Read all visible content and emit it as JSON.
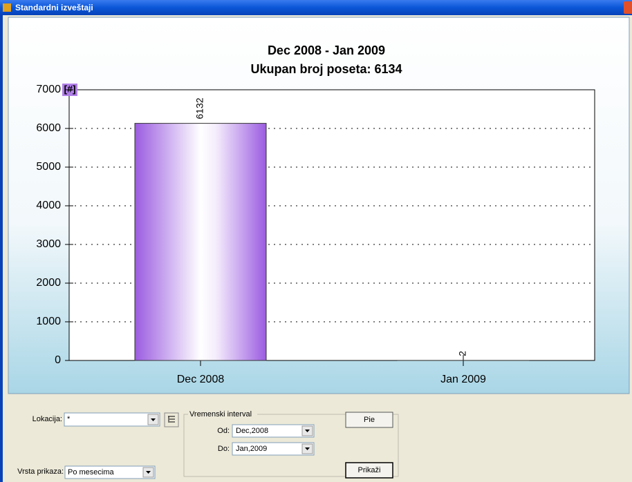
{
  "window": {
    "title": "Standardni izveštaji"
  },
  "chart_data": {
    "type": "bar",
    "title": "Dec 2008 - Jan 2009",
    "subtitle": "Ukupan broj poseta: 6134",
    "y_unit": "[#]",
    "categories": [
      "Dec 2008",
      "Jan 2009"
    ],
    "values": [
      6132,
      2
    ],
    "color": "#9b5ce0",
    "ylim": [
      0,
      7000
    ],
    "yticks": [
      0,
      1000,
      2000,
      3000,
      4000,
      5000,
      6000,
      7000
    ],
    "grid": true
  },
  "form": {
    "location_label": "Lokacija:",
    "location_value": "*",
    "display_label": "Vrsta prikaza:",
    "display_value": "Po mesecima",
    "interval_group": "Vremenski interval",
    "from_label": "Od:",
    "from_value": "Dec,2008",
    "to_label": "Do:",
    "to_value": "Jan,2009",
    "pie_button": "Pie",
    "show_button": "Prikaži"
  }
}
